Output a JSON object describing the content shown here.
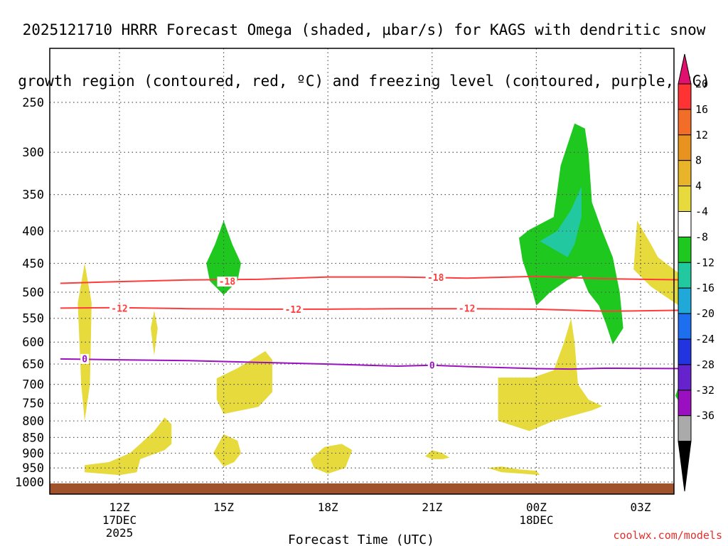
{
  "title_line1": "2025121710 HRRR Forecast Omega (shaded, µbar/s) for KAGS with dendritic snow",
  "title_line2": "growth region (contoured, red, ºC) and freezing level (contoured, purple, ºC)",
  "credit": "coolwx.com/models",
  "chart_data": {
    "type": "heatmap",
    "title": "2025121710 HRRR Forecast Omega (shaded, µbar/s) for KAGS with dendritic snow growth region (contoured, red, ºC) and freezing level (contoured, purple, ºC)",
    "xlabel": "Forecast Time (UTC)",
    "ylabel": "",
    "x_range_hours": [
      10.3,
      28.4
    ],
    "y_range_hpa": [
      1020,
      200
    ],
    "x_ticks": [
      {
        "hour": 12,
        "label": "12Z",
        "sub": [
          "17DEC",
          "2025"
        ]
      },
      {
        "hour": 15,
        "label": "15Z",
        "sub": []
      },
      {
        "hour": 18,
        "label": "18Z",
        "sub": []
      },
      {
        "hour": 21,
        "label": "21Z",
        "sub": []
      },
      {
        "hour": 24,
        "label": "00Z",
        "sub": [
          "18DEC"
        ]
      },
      {
        "hour": 27,
        "label": "03Z",
        "sub": []
      }
    ],
    "y_ticks": [
      250,
      300,
      350,
      400,
      450,
      500,
      550,
      600,
      650,
      700,
      750,
      800,
      850,
      900,
      950,
      1000
    ],
    "surface_level_hpa": 1005,
    "colorbar": {
      "labels": [
        "20",
        "16",
        "12",
        "8",
        "4",
        "-4",
        "-8",
        "-12",
        "-16",
        "-20",
        "-24",
        "-28",
        "-32",
        "-36"
      ],
      "colors": [
        "#ff3333",
        "#f26d27",
        "#e8931f",
        "#e8b52a",
        "#e6da3c",
        "#ffffff",
        "#1ec81e",
        "#22c9a0",
        "#20a8d8",
        "#1e6ef0",
        "#2233e0",
        "#6622cc",
        "#9a10c0",
        "#aaaaaa"
      ],
      "top_arrow_color": "#e0106e",
      "bottom_arrow_color": "#000000"
    },
    "contours": [
      {
        "name": "dendritic -18C",
        "value": "-18",
        "color": "#ff3b3b",
        "points": [
          [
            10.3,
            484
          ],
          [
            12,
            481
          ],
          [
            14,
            478
          ],
          [
            16,
            477
          ],
          [
            18,
            473
          ],
          [
            20,
            473
          ],
          [
            22,
            475
          ],
          [
            24,
            472
          ],
          [
            26,
            476
          ],
          [
            28.4,
            478
          ]
        ],
        "labels": [
          [
            15.1,
            481
          ],
          [
            21.1,
            474
          ]
        ]
      },
      {
        "name": "dendritic -12C",
        "value": "-12",
        "color": "#ff3b3b",
        "points": [
          [
            10.3,
            530
          ],
          [
            12,
            529
          ],
          [
            14,
            531
          ],
          [
            16,
            532
          ],
          [
            18,
            532
          ],
          [
            20,
            531
          ],
          [
            22,
            531
          ],
          [
            24,
            532
          ],
          [
            26,
            536
          ],
          [
            28.4,
            534
          ]
        ],
        "labels": [
          [
            12,
            531
          ],
          [
            17,
            533
          ],
          [
            22,
            531
          ]
        ]
      },
      {
        "name": "freezing level 0C",
        "value": "0",
        "color": "#9a10c0",
        "points": [
          [
            10.3,
            638
          ],
          [
            12,
            640
          ],
          [
            14,
            642
          ],
          [
            16,
            646
          ],
          [
            18,
            650
          ],
          [
            20,
            655
          ],
          [
            21,
            653
          ],
          [
            22,
            656
          ],
          [
            24,
            661
          ],
          [
            25,
            662
          ],
          [
            26,
            660
          ],
          [
            28.4,
            661
          ]
        ],
        "labels": [
          [
            11,
            638
          ],
          [
            21,
            653
          ]
        ]
      }
    ],
    "shaded_regions": [
      {
        "level": "4 to 8",
        "color": "#e6da3c",
        "points": [
          [
            11,
            450
          ],
          [
            11.2,
            520
          ],
          [
            11.15,
            700
          ],
          [
            11,
            800
          ],
          [
            10.9,
            700
          ],
          [
            10.8,
            520
          ]
        ]
      },
      {
        "level": "4 to 8",
        "color": "#e6da3c",
        "points": [
          [
            13,
            535
          ],
          [
            13.1,
            570
          ],
          [
            13,
            630
          ],
          [
            12.9,
            570
          ]
        ]
      },
      {
        "level": "4 to 8",
        "color": "#e6da3c",
        "points": [
          [
            11,
            940
          ],
          [
            11.7,
            930
          ],
          [
            12.3,
            900
          ],
          [
            12.6,
            870
          ],
          [
            13,
            830
          ],
          [
            13.3,
            790
          ],
          [
            13.5,
            810
          ],
          [
            13.5,
            870
          ],
          [
            13.3,
            890
          ],
          [
            12.6,
            920
          ],
          [
            12.5,
            965
          ],
          [
            12,
            975
          ],
          [
            11,
            965
          ]
        ]
      },
      {
        "level": "4 to 8",
        "color": "#e6da3c",
        "points": [
          [
            14.8,
            685
          ],
          [
            15.4,
            660
          ],
          [
            16.2,
            620
          ],
          [
            16.4,
            640
          ],
          [
            16.4,
            720
          ],
          [
            16,
            760
          ],
          [
            15.5,
            770
          ],
          [
            15,
            780
          ],
          [
            14.8,
            740
          ]
        ]
      },
      {
        "level": "4 to 8",
        "color": "#e6da3c",
        "points": [
          [
            14.7,
            900
          ],
          [
            15,
            840
          ],
          [
            15.4,
            860
          ],
          [
            15.5,
            900
          ],
          [
            15.3,
            930
          ],
          [
            15,
            945
          ]
        ]
      },
      {
        "level": "4 to 8",
        "color": "#e6da3c",
        "points": [
          [
            17.5,
            920
          ],
          [
            17.9,
            880
          ],
          [
            18.4,
            870
          ],
          [
            18.7,
            890
          ],
          [
            18.5,
            950
          ],
          [
            18,
            970
          ],
          [
            17.6,
            950
          ]
        ]
      },
      {
        "level": "4 to 8",
        "color": "#e6da3c",
        "points": [
          [
            20.8,
            910
          ],
          [
            21,
            890
          ],
          [
            21.3,
            900
          ],
          [
            21.5,
            915
          ],
          [
            21.3,
            920
          ],
          [
            21,
            920
          ]
        ]
      },
      {
        "level": "4 to 8",
        "color": "#e6da3c",
        "points": [
          [
            22.6,
            950
          ],
          [
            23,
            945
          ],
          [
            23.5,
            955
          ],
          [
            24,
            960
          ],
          [
            24.1,
            975
          ],
          [
            23.6,
            970
          ],
          [
            23,
            965
          ]
        ]
      },
      {
        "level": "4 to 8",
        "color": "#e6da3c",
        "points": [
          [
            22.9,
            683
          ],
          [
            23.9,
            683
          ],
          [
            24.5,
            665
          ],
          [
            24.8,
            600
          ],
          [
            25,
            550
          ],
          [
            25.1,
            600
          ],
          [
            25.2,
            700
          ],
          [
            25.5,
            740
          ],
          [
            25.9,
            758
          ],
          [
            25.6,
            770
          ],
          [
            24.5,
            800
          ],
          [
            23.8,
            830
          ],
          [
            22.9,
            800
          ]
        ]
      },
      {
        "level": "4 to 8",
        "color": "#e6da3c",
        "points": [
          [
            26.9,
            385
          ],
          [
            27.3,
            420
          ],
          [
            27.5,
            440
          ],
          [
            28.4,
            480
          ],
          [
            28.4,
            545
          ],
          [
            28.1,
            525
          ],
          [
            27.3,
            490
          ],
          [
            26.8,
            460
          ]
        ]
      },
      {
        "level": "-4 to -8",
        "color": "#1ec81e",
        "points": [
          [
            14.5,
            450
          ],
          [
            14.75,
            420
          ],
          [
            15,
            385
          ],
          [
            15.25,
            420
          ],
          [
            15.5,
            450
          ],
          [
            15.4,
            480
          ],
          [
            15,
            505
          ],
          [
            14.6,
            480
          ]
        ]
      },
      {
        "level": "-4 to -8",
        "color": "#1ec81e",
        "points": [
          [
            24.5,
            380
          ],
          [
            23.8,
            398
          ],
          [
            23.5,
            410
          ],
          [
            23.6,
            445
          ],
          [
            23.8,
            480
          ],
          [
            24,
            525
          ],
          [
            24.4,
            500
          ],
          [
            24.9,
            478
          ],
          [
            25.3,
            470
          ],
          [
            25.5,
            500
          ],
          [
            25.8,
            525
          ],
          [
            26,
            560
          ],
          [
            26.2,
            605
          ],
          [
            26.5,
            570
          ],
          [
            26.4,
            500
          ],
          [
            26.2,
            440
          ],
          [
            25.9,
            400
          ],
          [
            25.6,
            360
          ],
          [
            25.5,
            300
          ],
          [
            25.4,
            275
          ],
          [
            25.1,
            270
          ],
          [
            24.7,
            315
          ]
        ]
      },
      {
        "level": "-8 to -12",
        "color": "#22c9a0",
        "points": [
          [
            24.1,
            415
          ],
          [
            24.6,
            400
          ],
          [
            25,
            370
          ],
          [
            25.3,
            340
          ],
          [
            25.3,
            380
          ],
          [
            25.1,
            420
          ],
          [
            24.9,
            440
          ]
        ]
      },
      {
        "level": "-4 to -8",
        "color": "#1ec81e",
        "points": [
          [
            28.4,
            690
          ],
          [
            28.1,
            705
          ],
          [
            28,
            730
          ],
          [
            28.2,
            760
          ],
          [
            28.4,
            775
          ]
        ]
      }
    ]
  }
}
